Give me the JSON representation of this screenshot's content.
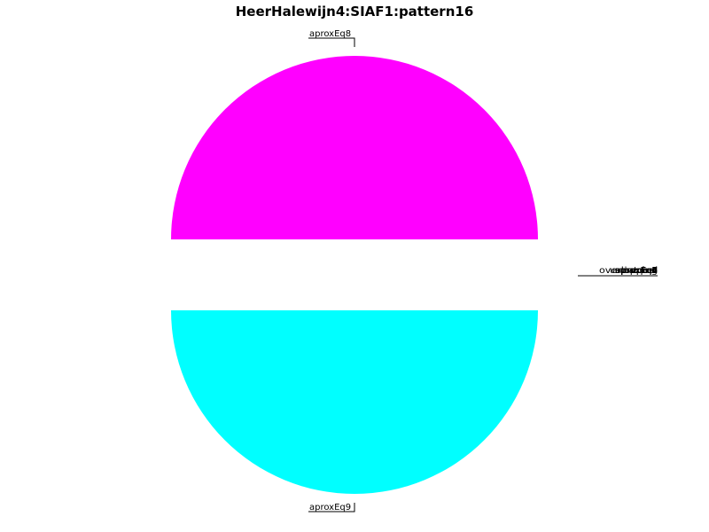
{
  "chart_data": {
    "type": "pie",
    "title": "HeerHalewijn4:SIAF1:pattern16",
    "slices": [
      {
        "label": "aproxEq8",
        "value": 50,
        "color": "#ff00ff",
        "exploded": true
      },
      {
        "label": "aproxEq9",
        "value": 50,
        "color": "#00ffff",
        "exploded": true
      }
    ],
    "zero_slices": [
      {
        "label": "aproxEq1",
        "value": 0
      },
      {
        "label": "aproxEq2",
        "value": 0
      },
      {
        "label": "aproxEq3",
        "value": 0
      },
      {
        "label": "aproxEq4",
        "value": 0
      },
      {
        "label": "aproxEq5",
        "value": 0
      },
      {
        "label": "aproxEq6",
        "value": 0
      },
      {
        "label": "aproxEq7",
        "value": 0
      },
      {
        "label": "subsumed",
        "value": 0
      },
      {
        "label": "unmatched",
        "value": 0
      },
      {
        "label": "overlapping",
        "value": 0
      },
      {
        "label": "equal",
        "value": 0
      }
    ],
    "start_angle_deg": 0,
    "legend": "none",
    "grid": false
  }
}
